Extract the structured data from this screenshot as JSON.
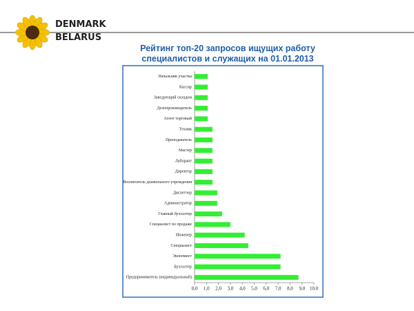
{
  "logo": {
    "line1": "DENMARK",
    "line2": "BELARUS"
  },
  "chart_data": {
    "type": "barh",
    "title": "Рейтинг топ-20 запросов ищущих работу специалистов и служащих на 01.01.2013",
    "categories": [
      "Начальник участка",
      "Кассир",
      "Заведующий складом",
      "Делопроизводитель",
      "Агент торговый",
      "Техник",
      "Преподаватель",
      "Мастер",
      "Лаборант",
      "Директор",
      "Воспитатель дошкольного учреждения",
      "Диспетчер",
      "Администратор",
      "Главный бухгалтер",
      "Специалист по продаже",
      "Инженер",
      "Специалист",
      "Экономист",
      "Бухгалтер",
      "Предприниматель (индивидуальный)"
    ],
    "values": [
      1.1,
      1.1,
      1.1,
      1.1,
      1.1,
      1.5,
      1.5,
      1.5,
      1.5,
      1.5,
      1.5,
      1.9,
      1.9,
      2.3,
      3.0,
      4.2,
      4.5,
      7.2,
      7.2,
      8.7
    ],
    "color": "#33ee33",
    "xlim": [
      0,
      10
    ],
    "xticks": [
      {
        "value": 0,
        "label": "0,0"
      },
      {
        "value": 1,
        "label": "1,0"
      },
      {
        "value": 2,
        "label": "2,0"
      },
      {
        "value": 3,
        "label": "3,0"
      },
      {
        "value": 4,
        "label": "4,0"
      },
      {
        "value": 5,
        "label": "5,0"
      },
      {
        "value": 6,
        "label": "6,0"
      },
      {
        "value": 7,
        "label": "7,0"
      },
      {
        "value": 8,
        "label": "8,0"
      },
      {
        "value": 9,
        "label": "9,0"
      },
      {
        "value": 10,
        "label": "10,0"
      }
    ]
  }
}
